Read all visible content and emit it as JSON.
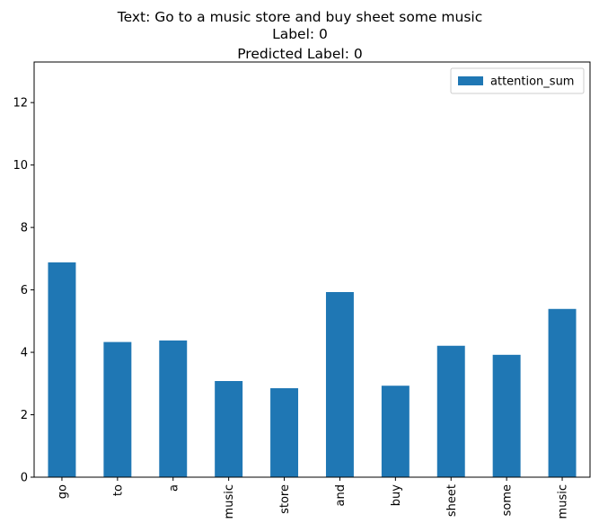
{
  "chart_data": {
    "type": "bar",
    "title_lines": [
      "Text: Go to a music store and buy sheet some music",
      "Label: 0",
      "Predicted Label: 0"
    ],
    "categories": [
      "go",
      "to",
      "a",
      "music",
      "store",
      "and",
      "buy",
      "sheet",
      "some",
      "music"
    ],
    "series": [
      {
        "name": "attention_sum",
        "color": "#1f77b4",
        "values": [
          6.88,
          4.33,
          4.38,
          3.08,
          2.85,
          5.93,
          2.93,
          4.21,
          3.92,
          5.39
        ]
      }
    ],
    "yticks": [
      0,
      2,
      4,
      6,
      8,
      10,
      12
    ],
    "ylim": [
      0,
      13.3
    ],
    "legend": "top-right",
    "grid": false
  }
}
